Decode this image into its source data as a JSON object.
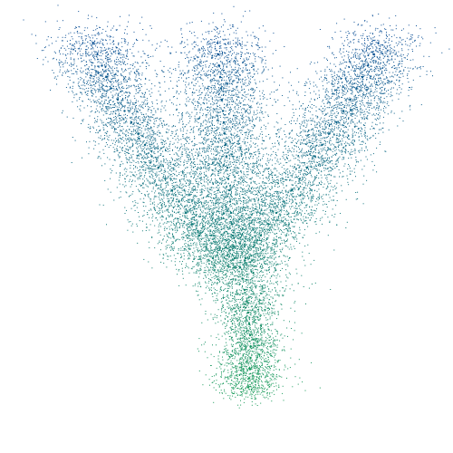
{
  "chart_data": {
    "type": "scatter",
    "description_style": "dense point cloud, no axes, no text",
    "colors": {
      "top": "#0b4f96",
      "middle": "#137a7d",
      "bottom": "#169a58"
    },
    "show_axes": false,
    "show_grid": false,
    "legend": "none",
    "xlim": [
      0,
      1
    ],
    "ylim": [
      0,
      1
    ],
    "series": [
      {
        "points": [
          [
            0.205,
            0.905
          ],
          [
            0.215,
            0.88
          ],
          [
            0.225,
            0.855
          ],
          [
            0.235,
            0.83
          ],
          [
            0.245,
            0.805
          ],
          [
            0.26,
            0.78
          ],
          [
            0.275,
            0.755
          ],
          [
            0.29,
            0.73
          ],
          [
            0.305,
            0.705
          ],
          [
            0.32,
            0.68
          ],
          [
            0.335,
            0.655
          ],
          [
            0.35,
            0.63
          ],
          [
            0.365,
            0.605
          ],
          [
            0.38,
            0.58
          ],
          [
            0.395,
            0.555
          ],
          [
            0.41,
            0.53
          ],
          [
            0.425,
            0.505
          ],
          [
            0.44,
            0.48
          ],
          [
            0.455,
            0.455
          ],
          [
            0.47,
            0.43
          ],
          [
            0.48,
            0.905
          ],
          [
            0.482,
            0.88
          ],
          [
            0.484,
            0.855
          ],
          [
            0.486,
            0.83
          ],
          [
            0.488,
            0.805
          ],
          [
            0.49,
            0.78
          ],
          [
            0.492,
            0.755
          ],
          [
            0.494,
            0.73
          ],
          [
            0.496,
            0.705
          ],
          [
            0.498,
            0.68
          ],
          [
            0.5,
            0.655
          ],
          [
            0.502,
            0.63
          ],
          [
            0.504,
            0.605
          ],
          [
            0.506,
            0.58
          ],
          [
            0.508,
            0.555
          ],
          [
            0.51,
            0.53
          ],
          [
            0.512,
            0.505
          ],
          [
            0.514,
            0.48
          ],
          [
            0.516,
            0.455
          ],
          [
            0.518,
            0.43
          ],
          [
            0.835,
            0.905
          ],
          [
            0.825,
            0.88
          ],
          [
            0.812,
            0.855
          ],
          [
            0.8,
            0.83
          ],
          [
            0.787,
            0.805
          ],
          [
            0.773,
            0.78
          ],
          [
            0.758,
            0.755
          ],
          [
            0.743,
            0.73
          ],
          [
            0.727,
            0.705
          ],
          [
            0.711,
            0.68
          ],
          [
            0.695,
            0.655
          ],
          [
            0.678,
            0.63
          ],
          [
            0.661,
            0.605
          ],
          [
            0.644,
            0.58
          ],
          [
            0.627,
            0.555
          ],
          [
            0.61,
            0.53
          ],
          [
            0.593,
            0.505
          ],
          [
            0.576,
            0.48
          ],
          [
            0.559,
            0.455
          ],
          [
            0.542,
            0.43
          ],
          [
            0.53,
            0.41
          ],
          [
            0.535,
            0.385
          ],
          [
            0.54,
            0.36
          ],
          [
            0.545,
            0.335
          ],
          [
            0.548,
            0.31
          ],
          [
            0.55,
            0.285
          ],
          [
            0.552,
            0.26
          ],
          [
            0.553,
            0.235
          ],
          [
            0.553,
            0.21
          ],
          [
            0.552,
            0.185
          ],
          [
            0.55,
            0.165
          ],
          [
            0.548,
            0.145
          ]
        ]
      }
    ]
  }
}
